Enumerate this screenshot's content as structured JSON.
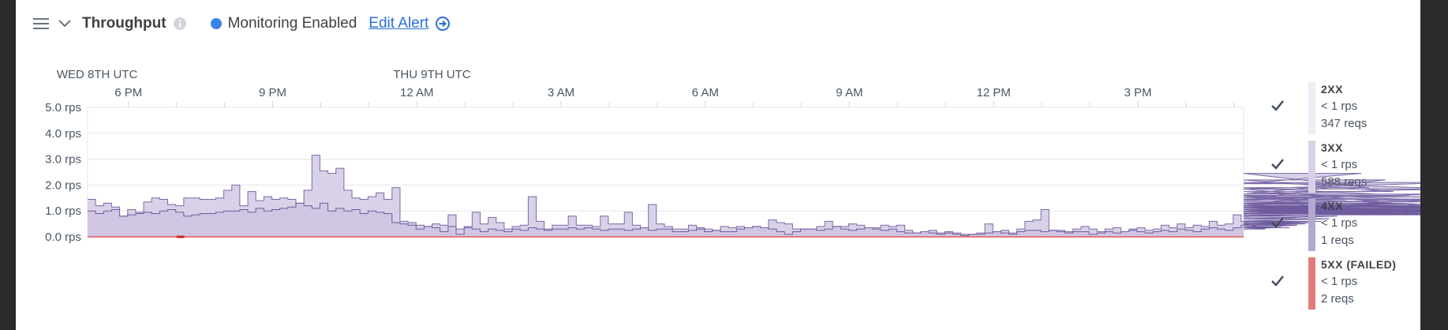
{
  "header": {
    "title": "Throughput",
    "status": "Monitoring Enabled",
    "link": "Edit Alert"
  },
  "chart_data": {
    "type": "area",
    "date_labels": [
      {
        "label": "WED 8TH UTC",
        "at_hour": 17.0
      },
      {
        "label": "THU 9TH UTC",
        "at_hour": 24.0
      }
    ],
    "x_tick_labels": [
      {
        "label": "6 PM",
        "hour": 18
      },
      {
        "label": "9 PM",
        "hour": 21
      },
      {
        "label": "12 AM",
        "hour": 24
      },
      {
        "label": "3 AM",
        "hour": 27
      },
      {
        "label": "6 AM",
        "hour": 30
      },
      {
        "label": "9 AM",
        "hour": 33
      },
      {
        "label": "12 PM",
        "hour": 36
      },
      {
        "label": "3 PM",
        "hour": 39
      }
    ],
    "y_ticks": [
      {
        "label": "0.0 rps",
        "value": 0
      },
      {
        "label": "1.0 rps",
        "value": 1
      },
      {
        "label": "2.0 rps",
        "value": 2
      },
      {
        "label": "3.0 rps",
        "value": 3
      },
      {
        "label": "4.0 rps",
        "value": 4
      },
      {
        "label": "5.0 rps",
        "value": 5
      }
    ],
    "ylim": [
      0,
      5
    ],
    "x_start_hour": 17.15,
    "x_end_hour": 41.2,
    "step_minutes": 10,
    "grid": true,
    "legend_position": "right",
    "series": [
      {
        "name": "2XX",
        "rate": "< 1 rps",
        "count": "347 reqs",
        "color": "#efedf6",
        "checked": true,
        "values": [
          1.0,
          0.9,
          1.0,
          1.05,
          0.8,
          0.85,
          0.9,
          0.95,
          0.9,
          1.0,
          1.05,
          0.95,
          0.8,
          0.85,
          0.9,
          0.9,
          0.95,
          1.0,
          1.0,
          1.05,
          0.95,
          1.1,
          1.0,
          1.05,
          1.1,
          1.15,
          1.3,
          1.2,
          1.1,
          1.3,
          1.0,
          1.1,
          1.0,
          1.05,
          0.9,
          1.0,
          0.95,
          0.9,
          0.55,
          0.5,
          0.45,
          0.3,
          0.4,
          0.35,
          0.2,
          0.4,
          0.1,
          0.35,
          0.3,
          0.2,
          0.3,
          0.25,
          0.2,
          0.3,
          0.25,
          0.35,
          0.3,
          0.25,
          0.3,
          0.3,
          0.35,
          0.3,
          0.35,
          0.3,
          0.25,
          0.3,
          0.3,
          0.25,
          0.3,
          0.35,
          0.25,
          0.3,
          0.3,
          0.2,
          0.2,
          0.25,
          0.3,
          0.2,
          0.25,
          0.2,
          0.2,
          0.3,
          0.35,
          0.4,
          0.35,
          0.3,
          0.2,
          0.1,
          0.2,
          0.3,
          0.3,
          0.25,
          0.3,
          0.4,
          0.3,
          0.25,
          0.3,
          0.35,
          0.3,
          0.25,
          0.3,
          0.2,
          0.15,
          0.15,
          0.2,
          0.15,
          0.1,
          0.15,
          0.1,
          0.05,
          0.1,
          0.1,
          0.15,
          0.2,
          0.15,
          0.1,
          0.2,
          0.25,
          0.25,
          0.2,
          0.25,
          0.2,
          0.15,
          0.2,
          0.2,
          0.1,
          0.15,
          0.2,
          0.15,
          0.2,
          0.25,
          0.2,
          0.15,
          0.2,
          0.25,
          0.2,
          0.3,
          0.25,
          0.2,
          0.3,
          0.35,
          0.3,
          0.25,
          0.35,
          0.45,
          0.5,
          0.4,
          0.3,
          0.35,
          0.4,
          0.35,
          0.45,
          0.5,
          0.55,
          0.6,
          0.7,
          0.8,
          0.9,
          0.95,
          1.0,
          0.9,
          1.0,
          1.1,
          1.3,
          1.2,
          1.0,
          1.1,
          1.2,
          1.05,
          1.1,
          1.0,
          0.9,
          0.95,
          1.0,
          1.05,
          1.15,
          1.2,
          1.1,
          1.0,
          0.85,
          0.9,
          0.95,
          0.9,
          1.0,
          1.05,
          0.95,
          0.9
        ]
      },
      {
        "name": "3XX",
        "rate": "< 1 rps",
        "count": "588 reqs",
        "color": "#d9d1e7",
        "checked": true,
        "values": [
          1.45,
          1.2,
          1.3,
          1.15,
          0.75,
          1.05,
          0.95,
          1.35,
          1.5,
          1.45,
          1.25,
          1.2,
          1.5,
          1.5,
          1.45,
          1.45,
          1.5,
          1.8,
          2.0,
          1.2,
          1.75,
          1.4,
          1.55,
          1.45,
          1.5,
          1.45,
          1.3,
          1.8,
          3.15,
          2.55,
          2.45,
          2.65,
          1.8,
          1.5,
          1.45,
          1.55,
          1.7,
          1.45,
          1.9,
          0.6,
          0.55,
          0.45,
          0.4,
          0.5,
          0.45,
          0.85,
          0.3,
          0.4,
          0.95,
          0.5,
          0.75,
          0.55,
          0.3,
          0.4,
          0.45,
          1.55,
          0.6,
          0.3,
          0.45,
          0.45,
          0.8,
          0.45,
          0.45,
          0.4,
          0.8,
          0.5,
          0.5,
          0.95,
          0.45,
          0.35,
          1.25,
          0.5,
          0.4,
          0.3,
          0.3,
          0.45,
          0.35,
          0.3,
          0.25,
          0.4,
          0.35,
          0.4,
          0.3,
          0.25,
          0.3,
          0.65,
          0.55,
          0.5,
          0.3,
          0.2,
          0.3,
          0.4,
          0.6,
          0.35,
          0.4,
          0.5,
          0.45,
          0.3,
          0.35,
          0.45,
          0.4,
          0.45,
          0.25,
          0.15,
          0.2,
          0.25,
          0.15,
          0.2,
          0.15,
          0.1,
          0.1,
          0.15,
          0.5,
          0.2,
          0.25,
          0.15,
          0.3,
          0.6,
          0.65,
          1.05,
          0.2,
          0.25,
          0.2,
          0.3,
          0.4,
          0.3,
          0.2,
          0.3,
          0.35,
          0.2,
          0.3,
          0.35,
          0.25,
          0.3,
          0.45,
          0.35,
          0.5,
          0.35,
          0.45,
          0.4,
          0.6,
          0.45,
          0.5,
          0.85,
          0.6,
          0.55,
          0.45,
          0.5,
          0.45,
          0.6,
          0.6,
          0.75,
          1.25,
          1.5,
          1.4,
          1.6,
          1.2,
          1.4,
          2.05,
          2.45,
          1.9,
          1.65,
          2.2,
          1.75,
          1.45,
          1.6,
          1.35,
          1.25,
          1.45,
          1.65,
          1.85,
          2.1,
          1.85,
          0.95,
          1.55,
          1.1,
          0.9,
          1.0,
          1.55,
          1.35,
          1.05,
          1.0
        ]
      },
      {
        "name": "4XX",
        "rate": "< 1 rps",
        "count": "1 reqs",
        "color": "#b4a8d1",
        "checked": true
      },
      {
        "name": "5XX (FAILED)",
        "rate": "< 1 rps",
        "count": "2 reqs",
        "color": "#e47a7a",
        "checked": true
      }
    ]
  }
}
